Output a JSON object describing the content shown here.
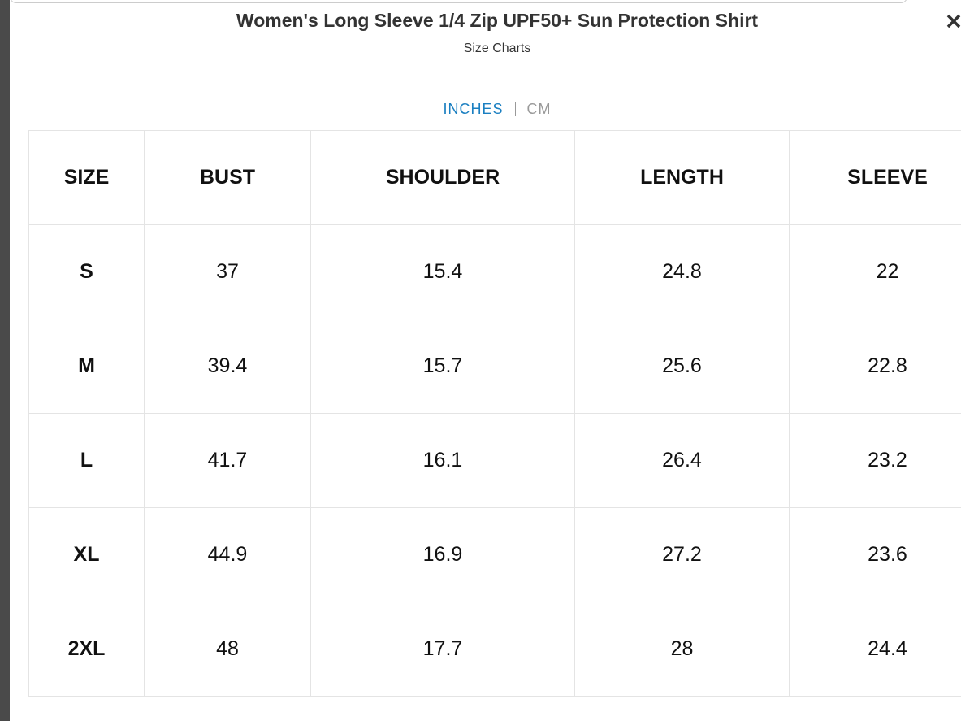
{
  "header": {
    "title": "Women's Long Sleeve 1/4 Zip UPF50+ Sun Protection Shirt",
    "subtitle": "Size Charts"
  },
  "unit_tabs": [
    "INCHES",
    "CM"
  ],
  "table": {
    "columns": [
      "SIZE",
      "BUST",
      "SHOULDER",
      "LENGTH",
      "SLEEVE"
    ],
    "rows": [
      [
        "S",
        "37",
        "15.4",
        "24.8",
        "22"
      ],
      [
        "M",
        "39.4",
        "15.7",
        "25.6",
        "22.8"
      ],
      [
        "L",
        "41.7",
        "16.1",
        "26.4",
        "23.2"
      ],
      [
        "XL",
        "44.9",
        "16.9",
        "27.2",
        "23.6"
      ],
      [
        "2XL",
        "48",
        "17.7",
        "28",
        "24.4"
      ]
    ]
  }
}
